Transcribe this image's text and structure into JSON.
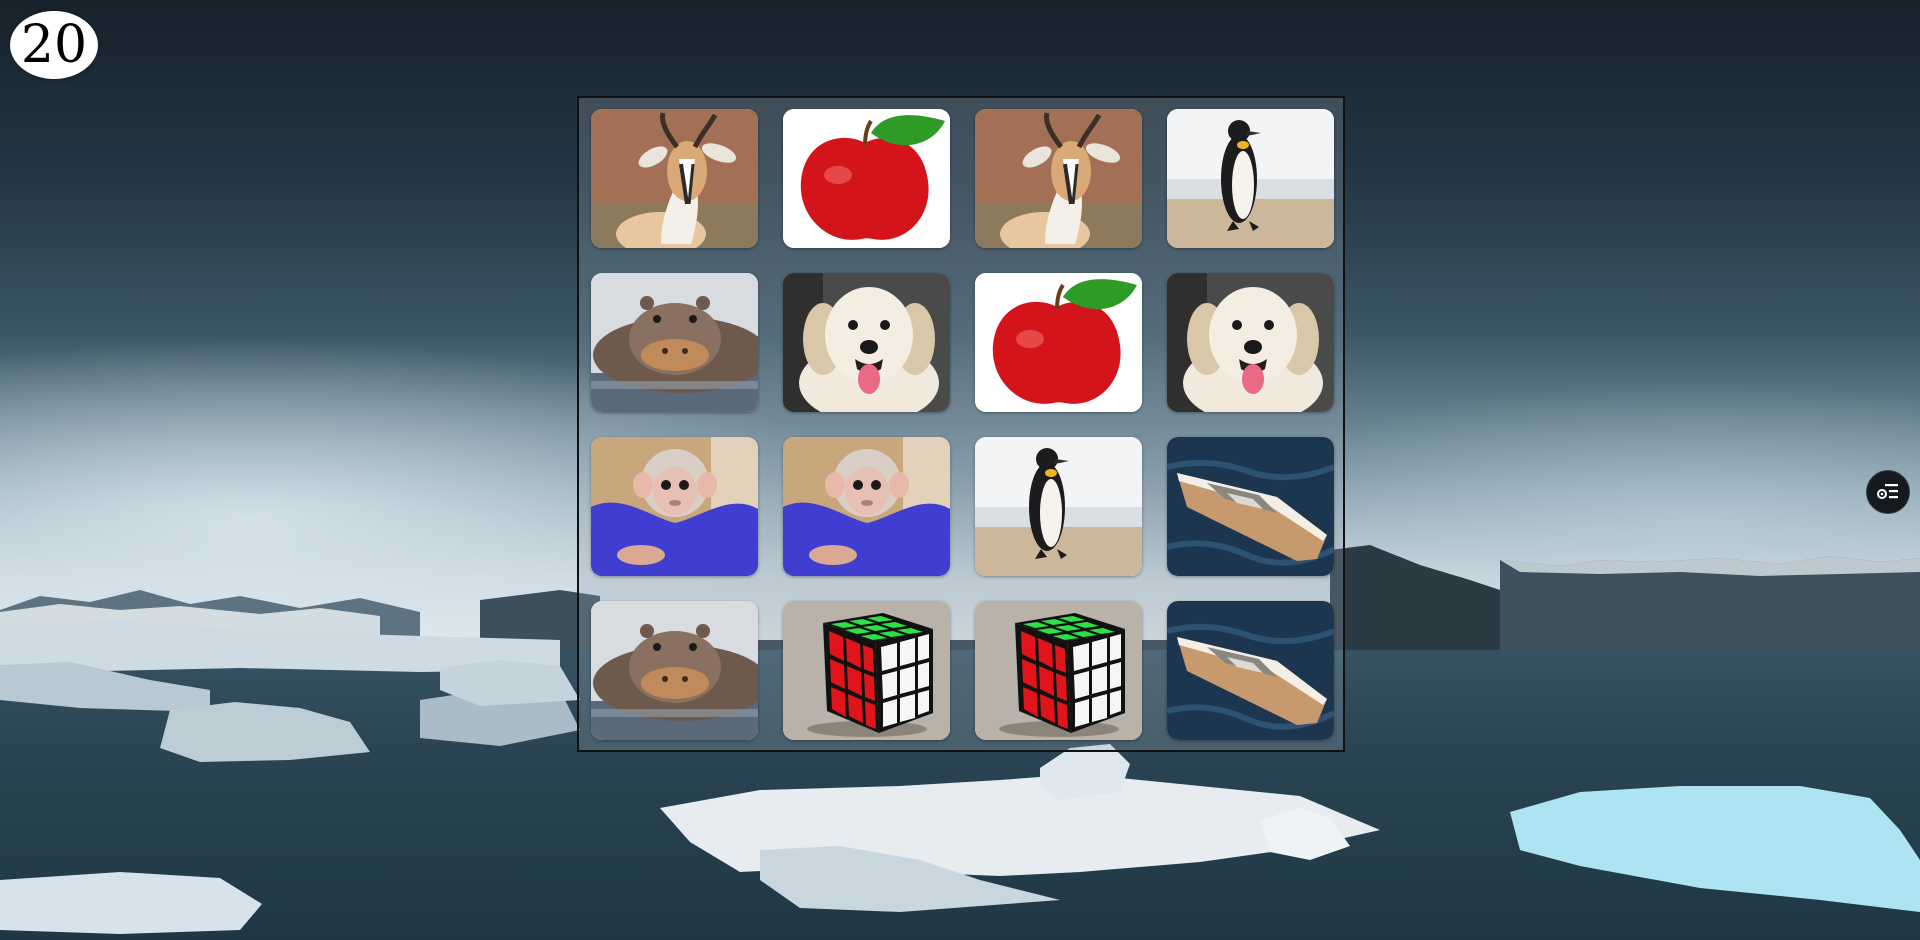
{
  "game": {
    "score": "20",
    "grid": {
      "rows": 4,
      "columns": 4
    },
    "cards": [
      {
        "subject": "gazelle"
      },
      {
        "subject": "apple"
      },
      {
        "subject": "gazelle"
      },
      {
        "subject": "penguin"
      },
      {
        "subject": "hippo"
      },
      {
        "subject": "dog"
      },
      {
        "subject": "apple"
      },
      {
        "subject": "dog"
      },
      {
        "subject": "monkey"
      },
      {
        "subject": "monkey"
      },
      {
        "subject": "penguin"
      },
      {
        "subject": "boat"
      },
      {
        "subject": "hippo"
      },
      {
        "subject": "rubiks-cube"
      },
      {
        "subject": "rubiks-cube"
      },
      {
        "subject": "boat"
      }
    ]
  },
  "controls": {
    "menu_button_icon": "list-settings-icon"
  },
  "colors": {
    "score_bg": "#ffffff",
    "board_border": "#111111",
    "menu_button_bg": "#151a1f"
  }
}
